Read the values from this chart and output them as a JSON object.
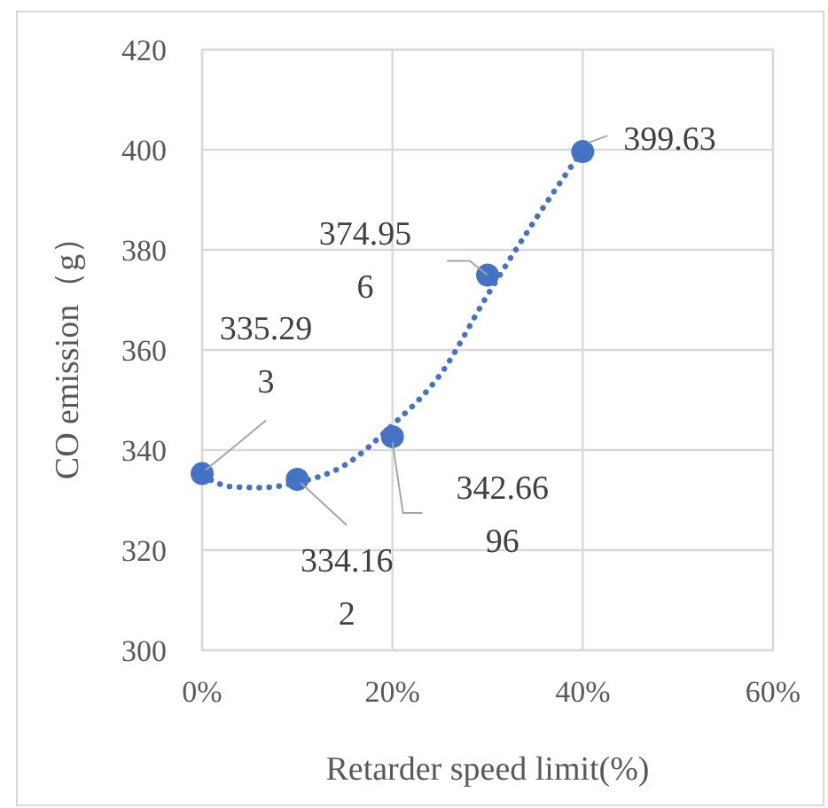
{
  "chart_data": {
    "type": "scatter",
    "xlabel": "Retarder speed limit(%)",
    "ylabel": "CO emission（g）",
    "x": [
      0,
      10,
      20,
      30,
      40
    ],
    "xlim": [
      0,
      60
    ],
    "xticks": [
      {
        "value": 0,
        "label": "0%"
      },
      {
        "value": 20,
        "label": "20%"
      },
      {
        "value": 40,
        "label": "40%"
      },
      {
        "value": 60,
        "label": "60%"
      }
    ],
    "ylim": [
      300,
      420
    ],
    "yticks": [
      300,
      320,
      340,
      360,
      380,
      400,
      420
    ],
    "grid": true,
    "marker": "circle",
    "series": [
      {
        "color": "#4472c4",
        "values": [
          335.293,
          334.162,
          342.6696,
          374.956,
          399.63
        ],
        "value_labels": [
          "335.293",
          "334.162",
          "342.6696",
          "374.956",
          "399.63"
        ]
      },
      {
        "type": "line",
        "color": "#4472c4",
        "line_style": "dotted",
        "marker": "none",
        "x": [
          0,
          3,
          6,
          10,
          15,
          20,
          25,
          30,
          35,
          40
        ],
        "values": [
          335,
          332.7,
          332.5,
          333.5,
          337,
          345,
          355,
          371,
          386,
          400
        ]
      }
    ]
  }
}
